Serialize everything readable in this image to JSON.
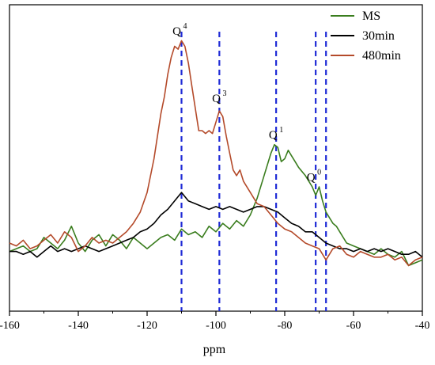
{
  "chart_data": {
    "type": "line",
    "xlabel": "ppm",
    "ylabel": "",
    "title": "",
    "xlim": [
      -160,
      -40
    ],
    "x_reversed": false,
    "xticks": [
      -160,
      -140,
      -120,
      -100,
      -80,
      -60,
      -40
    ],
    "yaxis_visible": false,
    "ylim": [
      0,
      100
    ],
    "legend_position": "top-right",
    "series": [
      {
        "name": "MS",
        "color": "#3a7d1e",
        "points": [
          [
            -160,
            17
          ],
          [
            -158,
            18
          ],
          [
            -156,
            19
          ],
          [
            -154,
            17
          ],
          [
            -152,
            18
          ],
          [
            -150,
            22
          ],
          [
            -148,
            20
          ],
          [
            -146,
            18
          ],
          [
            -144,
            21
          ],
          [
            -142,
            26
          ],
          [
            -140,
            20
          ],
          [
            -138,
            17
          ],
          [
            -136,
            21
          ],
          [
            -134,
            23
          ],
          [
            -132,
            19
          ],
          [
            -130,
            23
          ],
          [
            -128,
            21
          ],
          [
            -126,
            18
          ],
          [
            -124,
            22
          ],
          [
            -122,
            20
          ],
          [
            -120,
            18
          ],
          [
            -118,
            20
          ],
          [
            -116,
            22
          ],
          [
            -114,
            23
          ],
          [
            -112,
            21
          ],
          [
            -110,
            25
          ],
          [
            -108,
            23
          ],
          [
            -106,
            24
          ],
          [
            -104,
            22
          ],
          [
            -102,
            26
          ],
          [
            -100,
            24
          ],
          [
            -98,
            27
          ],
          [
            -96,
            25
          ],
          [
            -94,
            28
          ],
          [
            -92,
            26
          ],
          [
            -90,
            30
          ],
          [
            -88,
            36
          ],
          [
            -86,
            44
          ],
          [
            -84,
            52
          ],
          [
            -83,
            55
          ],
          [
            -82,
            54
          ],
          [
            -81,
            49
          ],
          [
            -80,
            50
          ],
          [
            -79,
            53
          ],
          [
            -78,
            51
          ],
          [
            -77,
            49
          ],
          [
            -76,
            47
          ],
          [
            -74,
            44
          ],
          [
            -72,
            40
          ],
          [
            -71,
            37
          ],
          [
            -70,
            40
          ],
          [
            -69,
            35
          ],
          [
            -68,
            31
          ],
          [
            -66,
            27
          ],
          [
            -65,
            26
          ],
          [
            -64,
            24
          ],
          [
            -62,
            20
          ],
          [
            -60,
            19
          ],
          [
            -58,
            18
          ],
          [
            -56,
            17
          ],
          [
            -54,
            16
          ],
          [
            -52,
            18
          ],
          [
            -50,
            16
          ],
          [
            -48,
            15
          ],
          [
            -46,
            17
          ],
          [
            -44,
            12
          ],
          [
            -42,
            13
          ],
          [
            -40,
            14
          ]
        ]
      },
      {
        "name": "30min",
        "color": "#000000",
        "points": [
          [
            -160,
            17
          ],
          [
            -158,
            17
          ],
          [
            -156,
            16
          ],
          [
            -154,
            17
          ],
          [
            -152,
            15
          ],
          [
            -150,
            17
          ],
          [
            -148,
            19
          ],
          [
            -146,
            17
          ],
          [
            -144,
            18
          ],
          [
            -142,
            17
          ],
          [
            -140,
            18
          ],
          [
            -138,
            19
          ],
          [
            -136,
            18
          ],
          [
            -134,
            17
          ],
          [
            -132,
            18
          ],
          [
            -130,
            19
          ],
          [
            -128,
            20
          ],
          [
            -126,
            21
          ],
          [
            -124,
            22
          ],
          [
            -122,
            24
          ],
          [
            -120,
            25
          ],
          [
            -118,
            27
          ],
          [
            -116,
            30
          ],
          [
            -114,
            32
          ],
          [
            -112,
            35
          ],
          [
            -110,
            38
          ],
          [
            -108,
            35
          ],
          [
            -106,
            34
          ],
          [
            -104,
            33
          ],
          [
            -102,
            32
          ],
          [
            -100,
            33
          ],
          [
            -98,
            32
          ],
          [
            -96,
            33
          ],
          [
            -94,
            32
          ],
          [
            -92,
            31
          ],
          [
            -90,
            32
          ],
          [
            -88,
            33
          ],
          [
            -86,
            33
          ],
          [
            -84,
            32
          ],
          [
            -82,
            31
          ],
          [
            -80,
            29
          ],
          [
            -78,
            27
          ],
          [
            -76,
            26
          ],
          [
            -74,
            24
          ],
          [
            -72,
            24
          ],
          [
            -70,
            22
          ],
          [
            -68,
            20
          ],
          [
            -66,
            19
          ],
          [
            -64,
            18
          ],
          [
            -62,
            18
          ],
          [
            -60,
            17
          ],
          [
            -58,
            18
          ],
          [
            -56,
            17
          ],
          [
            -54,
            18
          ],
          [
            -52,
            17
          ],
          [
            -50,
            18
          ],
          [
            -48,
            17
          ],
          [
            -46,
            16
          ],
          [
            -44,
            16
          ],
          [
            -42,
            17
          ],
          [
            -40,
            15
          ]
        ]
      },
      {
        "name": "480min",
        "color": "#b44a2a",
        "points": [
          [
            -160,
            20
          ],
          [
            -158,
            19
          ],
          [
            -156,
            21
          ],
          [
            -154,
            18
          ],
          [
            -152,
            19
          ],
          [
            -150,
            21
          ],
          [
            -148,
            23
          ],
          [
            -146,
            20
          ],
          [
            -144,
            24
          ],
          [
            -142,
            22
          ],
          [
            -140,
            17
          ],
          [
            -138,
            19
          ],
          [
            -136,
            22
          ],
          [
            -134,
            20
          ],
          [
            -132,
            21
          ],
          [
            -130,
            20
          ],
          [
            -128,
            22
          ],
          [
            -126,
            24
          ],
          [
            -124,
            27
          ],
          [
            -122,
            31
          ],
          [
            -120,
            38
          ],
          [
            -118,
            50
          ],
          [
            -116,
            66
          ],
          [
            -115,
            72
          ],
          [
            -114,
            80
          ],
          [
            -113,
            86
          ],
          [
            -112,
            90
          ],
          [
            -111,
            89
          ],
          [
            -110,
            92
          ],
          [
            -109,
            90
          ],
          [
            -108,
            84
          ],
          [
            -107,
            76
          ],
          [
            -106,
            68
          ],
          [
            -105,
            60
          ],
          [
            -104,
            60
          ],
          [
            -103,
            59
          ],
          [
            -102,
            60
          ],
          [
            -101,
            59
          ],
          [
            -100,
            63
          ],
          [
            -99,
            67
          ],
          [
            -98,
            65
          ],
          [
            -97,
            58
          ],
          [
            -96,
            52
          ],
          [
            -95,
            46
          ],
          [
            -94,
            44
          ],
          [
            -93,
            46
          ],
          [
            -92,
            42
          ],
          [
            -90,
            38
          ],
          [
            -88,
            34
          ],
          [
            -86,
            33
          ],
          [
            -84,
            30
          ],
          [
            -82,
            27
          ],
          [
            -80,
            25
          ],
          [
            -78,
            24
          ],
          [
            -76,
            22
          ],
          [
            -74,
            20
          ],
          [
            -72,
            19
          ],
          [
            -70,
            18
          ],
          [
            -68,
            14
          ],
          [
            -66,
            18
          ],
          [
            -64,
            19
          ],
          [
            -62,
            16
          ],
          [
            -60,
            15
          ],
          [
            -58,
            17
          ],
          [
            -56,
            16
          ],
          [
            -54,
            15
          ],
          [
            -52,
            15
          ],
          [
            -50,
            16
          ],
          [
            -48,
            14
          ],
          [
            -46,
            15
          ],
          [
            -44,
            12
          ],
          [
            -42,
            14
          ],
          [
            -40,
            15
          ]
        ]
      }
    ],
    "annotations": [
      {
        "label": "Q",
        "sup": "4",
        "x": -110,
        "y": 93
      },
      {
        "label": "Q",
        "sup": "3",
        "x": -98.5,
        "y": 69
      },
      {
        "label": "Q",
        "sup": "1",
        "x": -82,
        "y": 56
      },
      {
        "label": "Q",
        "sup": "0",
        "x": -71,
        "y": 41
      }
    ],
    "guide_lines": {
      "color": "#1f2bd6",
      "style": "dashed",
      "x": [
        -110,
        -99,
        -82.5,
        -71,
        -68
      ]
    }
  }
}
